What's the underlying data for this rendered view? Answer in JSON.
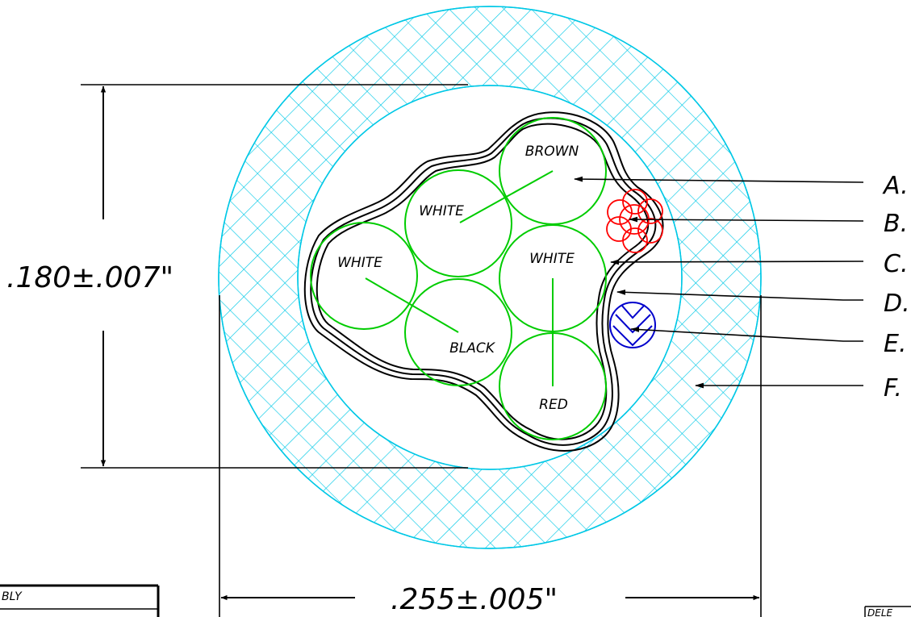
{
  "dimensions": {
    "height_label": ".180±.007\"",
    "width_label": ".255±.005\""
  },
  "conductors": [
    {
      "id": "brown",
      "label": "BROWN"
    },
    {
      "id": "white-top",
      "label": "WHITE"
    },
    {
      "id": "white-left",
      "label": "WHITE"
    },
    {
      "id": "black",
      "label": "BLACK"
    },
    {
      "id": "white-right",
      "label": "WHITE"
    },
    {
      "id": "red",
      "label": "RED"
    }
  ],
  "callouts": [
    "A.",
    "B.",
    "C.",
    "D.",
    "E.",
    "F."
  ],
  "fragments": {
    "title_block": "BLY",
    "corner_box": "DELE"
  },
  "colors": {
    "jacket_hatch": "#00c8e6",
    "conductor": "#00cc00",
    "drain_strands": "#ff0000",
    "filler": "#0000cc",
    "line": "#000000"
  }
}
